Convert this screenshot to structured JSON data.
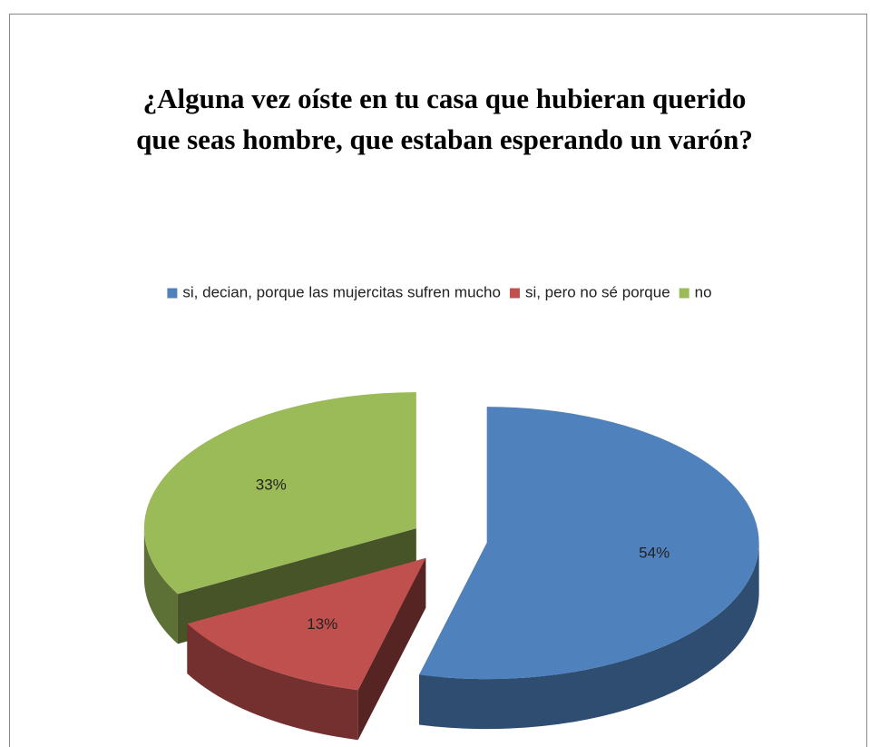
{
  "chart_data": {
    "type": "pie",
    "title": "¿Alguna vez oíste en tu casa que hubieran querido que seas hombre, que estaban esperando un varón?",
    "categories": [
      "si, decian, porque las mujercitas sufren mucho",
      "si, pero no sé porque",
      "no"
    ],
    "values": [
      54,
      13,
      33
    ],
    "value_labels": [
      "54%",
      "13%",
      "33%"
    ],
    "colors": [
      "#4f81bd",
      "#c0504d",
      "#9bbb59"
    ],
    "legend": "top"
  }
}
